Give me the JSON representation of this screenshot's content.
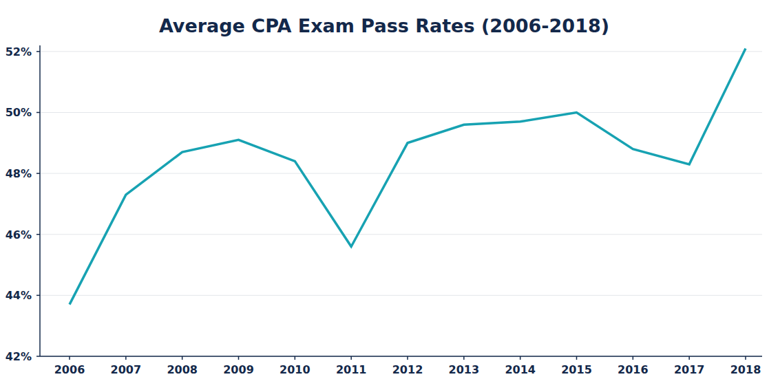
{
  "chart_data": {
    "type": "line",
    "title": "Average CPA Exam Pass Rates (2006-2018)",
    "categories": [
      "2006",
      "2007",
      "2008",
      "2009",
      "2010",
      "2011",
      "2012",
      "2013",
      "2014",
      "2015",
      "2016",
      "2017",
      "2018"
    ],
    "values": [
      43.7,
      47.3,
      48.7,
      49.1,
      48.4,
      45.6,
      49.0,
      49.6,
      49.7,
      50.0,
      48.8,
      48.3,
      52.1
    ],
    "color": "#17a2b2",
    "ylim": [
      42,
      52.2
    ],
    "yticks": [
      {
        "value": 42,
        "label": "42%"
      },
      {
        "value": 44,
        "label": "44%"
      },
      {
        "value": 46,
        "label": "46%"
      },
      {
        "value": 48,
        "label": "48%"
      },
      {
        "value": 50,
        "label": "50%"
      },
      {
        "value": 52,
        "label": "52%"
      }
    ],
    "grid": true
  }
}
